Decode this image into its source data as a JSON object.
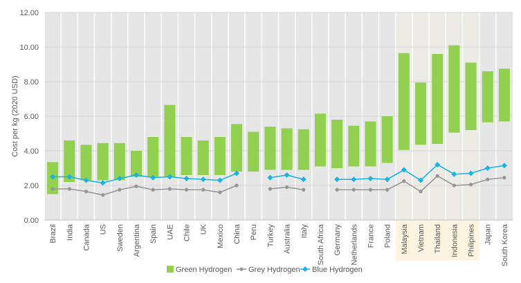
{
  "chart_data": {
    "type": "floating-bar-and-line",
    "ylabel": "Cost  per kg (2020 USD)",
    "xlabel": "",
    "ylim": [
      0,
      12
    ],
    "yticks": [
      "0.00",
      "2.00",
      "4.00",
      "6.00",
      "8.00",
      "10.00",
      "12.00"
    ],
    "categories": [
      "Brazil",
      "India",
      "Canada",
      "US",
      "Sweden",
      "Argentina",
      "Spain",
      "UAE",
      "Chile",
      "UK",
      "Mexico",
      "China",
      "Peru",
      "Turkey",
      "Australia",
      "Italy",
      "South Africa",
      "Germany",
      "Netherlands",
      "France",
      "Poland",
      "Malaysia",
      "Vietnam",
      "Thailand",
      "Indonesia",
      "Philipines",
      "Japan",
      "South Korea"
    ],
    "highlighted_categories": [
      "Malaysia",
      "Vietnam",
      "Thailand",
      "Indonesia",
      "Philipines"
    ],
    "series": [
      {
        "name": "Green Hydrogen",
        "kind": "floating-bar",
        "color": "#92d050",
        "low": [
          1.5,
          2.2,
          2.3,
          2.3,
          2.3,
          2.5,
          2.5,
          2.5,
          2.6,
          2.6,
          2.6,
          2.8,
          2.8,
          2.9,
          2.9,
          2.9,
          3.1,
          3.0,
          3.1,
          3.1,
          3.3,
          4.05,
          4.35,
          4.4,
          5.05,
          5.2,
          5.65,
          5.7
        ],
        "high": [
          3.35,
          4.6,
          4.35,
          4.45,
          4.45,
          4.0,
          4.8,
          6.65,
          4.8,
          4.6,
          4.8,
          5.55,
          5.1,
          5.4,
          5.3,
          5.25,
          6.15,
          5.8,
          5.45,
          5.7,
          6.0,
          9.65,
          7.95,
          9.6,
          10.1,
          9.1,
          8.6,
          8.75
        ]
      },
      {
        "name": "Grey Hydrogen",
        "kind": "line",
        "color": "#969696",
        "values": [
          1.8,
          1.8,
          1.65,
          1.45,
          1.75,
          1.95,
          1.75,
          1.8,
          1.75,
          1.75,
          1.6,
          2.0,
          null,
          1.8,
          1.9,
          1.75,
          null,
          1.75,
          1.75,
          1.75,
          1.75,
          2.25,
          1.65,
          2.55,
          2.0,
          2.05,
          2.35,
          2.45
        ]
      },
      {
        "name": "Blue Hydrogen",
        "kind": "line",
        "color": "#1ab2e0",
        "values": [
          2.5,
          2.5,
          2.3,
          2.15,
          2.4,
          2.6,
          2.45,
          2.5,
          2.4,
          2.35,
          2.3,
          2.7,
          null,
          2.45,
          2.6,
          2.35,
          null,
          2.35,
          2.35,
          2.4,
          2.35,
          2.9,
          2.3,
          3.2,
          2.65,
          2.7,
          3.0,
          3.15
        ]
      }
    ],
    "grid": true,
    "legend_position": "bottom",
    "colors": {
      "plot_background": "#e6e6e6",
      "highlight_band": "#fdf5e2",
      "stripe": "#ffffff"
    }
  }
}
